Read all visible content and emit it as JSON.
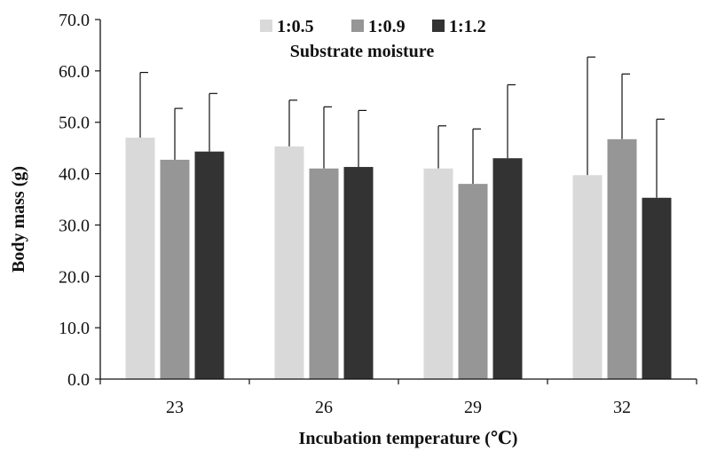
{
  "chart_data": {
    "type": "bar",
    "categories": [
      "23",
      "26",
      "29",
      "32"
    ],
    "xlabel": "Incubation  temperature (℃)",
    "ylabel": "Body  mass (g)",
    "ylim": [
      0,
      70
    ],
    "yticks": [
      "0.0",
      "10.0",
      "20.0",
      "30.0",
      "40.0",
      "50.0",
      "60.0",
      "70.0"
    ],
    "grid": false,
    "legend_title": "Substrate moisture",
    "legend_position": "top-center",
    "error_bars": "upper only",
    "series": [
      {
        "name": "1:0.5",
        "color": "#d9d9d9",
        "values": [
          47.0,
          45.3,
          41.0,
          39.7
        ],
        "errors": [
          12.7,
          9.0,
          8.3,
          23.0
        ]
      },
      {
        "name": "1:0.9",
        "color": "#969696",
        "values": [
          42.7,
          41.0,
          38.0,
          46.7
        ],
        "errors": [
          10.0,
          12.0,
          10.7,
          12.7
        ]
      },
      {
        "name": "1:1.2",
        "color": "#333333",
        "values": [
          44.3,
          41.3,
          43.0,
          35.3
        ],
        "errors": [
          11.3,
          11.0,
          14.3,
          15.3
        ]
      }
    ]
  }
}
